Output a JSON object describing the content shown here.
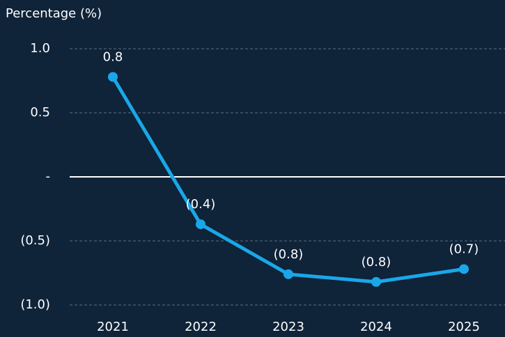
{
  "chart_data": {
    "type": "line",
    "y_axis_label": "Percentage (%)",
    "categories": [
      "2021",
      "2022",
      "2023",
      "2024",
      "2025"
    ],
    "series": [
      {
        "name": "Percentage",
        "color": "#1aa7e8",
        "values": [
          0.78,
          -0.37,
          -0.76,
          -0.82,
          -0.72
        ],
        "value_labels": [
          "0.8",
          "(0.4)",
          "(0.8)",
          "(0.8)",
          "(0.7)"
        ]
      }
    ],
    "ylim": [
      -1,
      1
    ],
    "yticks": [
      {
        "value": -1,
        "label": "(1.0)"
      },
      {
        "value": -0.5,
        "label": "(0.5)"
      },
      {
        "value": 0,
        "label": "-"
      },
      0.5,
      {
        "value": 1,
        "label": "1.0"
      }
    ],
    "grid": true
  }
}
